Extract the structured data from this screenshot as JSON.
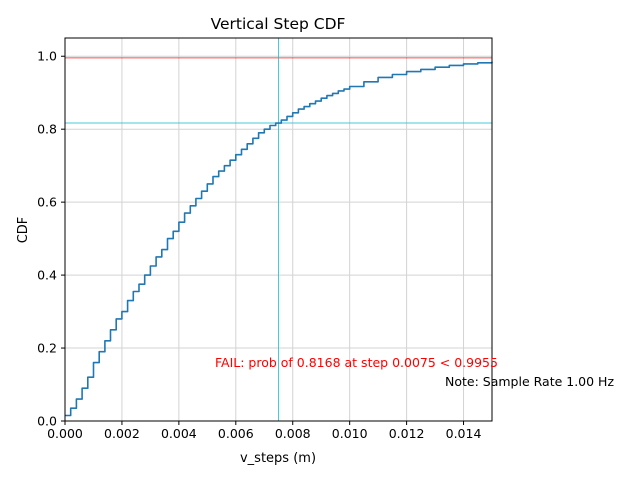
{
  "chart_data": {
    "type": "line",
    "title": "Vertical Step CDF",
    "xlabel": "v_steps (m)",
    "ylabel": "CDF",
    "xlim": [
      0,
      0.015
    ],
    "ylim": [
      0,
      1.05
    ],
    "grid": true,
    "x_ticks": [
      0,
      0.002,
      0.004,
      0.006,
      0.008,
      0.01,
      0.012,
      0.014
    ],
    "x_tick_labels": [
      "0.000",
      "0.002",
      "0.004",
      "0.006",
      "0.008",
      "0.010",
      "0.012",
      "0.014"
    ],
    "y_ticks": [
      0,
      0.2,
      0.4,
      0.6,
      0.8,
      1.0
    ],
    "y_tick_labels": [
      "0.0",
      "0.2",
      "0.4",
      "0.6",
      "0.8",
      "1.0"
    ],
    "series": [
      {
        "name": "CDF",
        "color": "#1f77b4",
        "x": [
          0,
          0.0002,
          0.0004,
          0.0006,
          0.0008,
          0.001,
          0.0012,
          0.0014,
          0.0016,
          0.0018,
          0.002,
          0.0022,
          0.0024,
          0.0026,
          0.0028,
          0.003,
          0.0032,
          0.0034,
          0.0036,
          0.0038,
          0.004,
          0.0042,
          0.0044,
          0.0046,
          0.0048,
          0.005,
          0.0052,
          0.0054,
          0.0056,
          0.0058,
          0.006,
          0.0062,
          0.0064,
          0.0066,
          0.0068,
          0.007,
          0.0072,
          0.0074,
          0.0076,
          0.0078,
          0.008,
          0.0082,
          0.0084,
          0.0086,
          0.0088,
          0.009,
          0.0092,
          0.0094,
          0.0096,
          0.0098,
          0.01,
          0.0105,
          0.011,
          0.0115,
          0.012,
          0.0125,
          0.013,
          0.0135,
          0.014,
          0.0145,
          0.015
        ],
        "y": [
          0.015,
          0.035,
          0.06,
          0.09,
          0.12,
          0.16,
          0.19,
          0.22,
          0.25,
          0.28,
          0.3,
          0.33,
          0.355,
          0.375,
          0.4,
          0.425,
          0.45,
          0.47,
          0.5,
          0.52,
          0.545,
          0.57,
          0.59,
          0.61,
          0.63,
          0.65,
          0.67,
          0.685,
          0.7,
          0.715,
          0.73,
          0.745,
          0.76,
          0.775,
          0.79,
          0.8,
          0.81,
          0.8168,
          0.825,
          0.835,
          0.845,
          0.855,
          0.862,
          0.87,
          0.877,
          0.885,
          0.892,
          0.898,
          0.905,
          0.91,
          0.917,
          0.93,
          0.942,
          0.95,
          0.958,
          0.964,
          0.97,
          0.975,
          0.979,
          0.982,
          0.985
        ]
      }
    ],
    "reference_lines": {
      "threshold_y": 0.9955,
      "threshold_color": "#ff0000",
      "measured_y": 0.8168,
      "measured_x": 0.0075,
      "marker_color": "#17becf"
    },
    "annotations": [
      {
        "text": "FAIL: prob of 0.8168 at step 0.0075 < 0.9955",
        "color": "#ff0000"
      },
      {
        "text": "Note: Sample Rate 1.00 Hz",
        "color": "#000000"
      }
    ]
  }
}
